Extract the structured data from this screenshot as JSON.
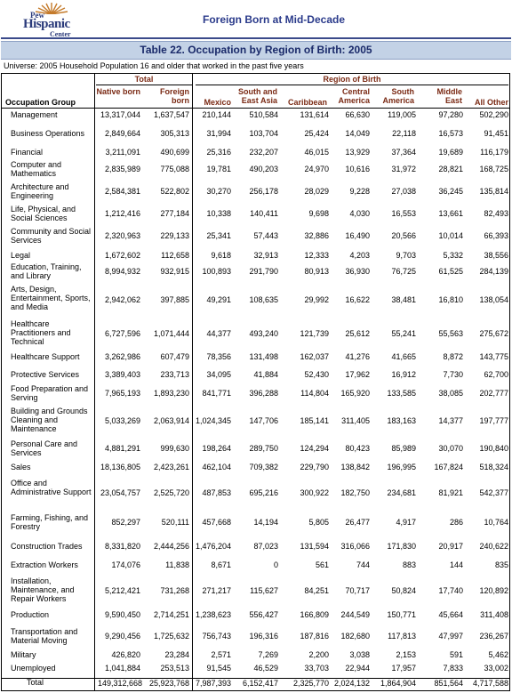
{
  "header": {
    "logo": {
      "line1": "Pew",
      "line2": "Hispanic",
      "line3": "Center"
    },
    "title": "Foreign Born at Mid-Decade"
  },
  "table": {
    "title": "Table 22. Occupation by Region of Birth:  2005",
    "universe": "Universe: 2005 Household Population 16 and older that worked in the past five years",
    "group_total": "Total",
    "group_region": "Region of Birth",
    "row_header": "Occupation Group",
    "columns": [
      "Native born",
      "Foreign born",
      "Mexico",
      "South and East Asia",
      "Caribbean",
      "Central America",
      "South America",
      "Middle East",
      "All Other"
    ],
    "rows": [
      {
        "label": "Management",
        "values": [
          "13,317,044",
          "1,637,547",
          "210,144",
          "510,584",
          "131,614",
          "66,630",
          "119,005",
          "97,280",
          "502,290"
        ]
      },
      {
        "label": "Business Operations",
        "values": [
          "2,849,664",
          "305,313",
          "31,994",
          "103,704",
          "25,424",
          "14,049",
          "22,118",
          "16,573",
          "91,451"
        ]
      },
      {
        "label": "Financial",
        "values": [
          "3,211,091",
          "490,699",
          "25,316",
          "232,207",
          "46,015",
          "13,929",
          "37,364",
          "19,689",
          "116,179"
        ]
      },
      {
        "label": "Computer and Mathematics",
        "values": [
          "2,835,989",
          "775,088",
          "19,781",
          "490,203",
          "24,970",
          "10,616",
          "31,972",
          "28,821",
          "168,725"
        ]
      },
      {
        "label": "Architecture and Engineering",
        "values": [
          "2,584,381",
          "522,802",
          "30,270",
          "256,178",
          "28,029",
          "9,228",
          "27,038",
          "36,245",
          "135,814"
        ]
      },
      {
        "label": "Life, Physical, and Social Sciences",
        "values": [
          "1,212,416",
          "277,184",
          "10,338",
          "140,411",
          "9,698",
          "4,030",
          "16,553",
          "13,661",
          "82,493"
        ]
      },
      {
        "label": "Community and Social Services",
        "values": [
          "2,320,963",
          "229,133",
          "25,341",
          "57,443",
          "32,886",
          "16,490",
          "20,566",
          "10,014",
          "66,393"
        ]
      },
      {
        "label": "Legal",
        "values": [
          "1,672,602",
          "112,658",
          "9,618",
          "32,913",
          "12,333",
          "4,203",
          "9,703",
          "5,332",
          "38,556"
        ]
      },
      {
        "label": "Education, Training, and Library",
        "values": [
          "8,994,932",
          "932,915",
          "100,893",
          "291,790",
          "80,913",
          "36,930",
          "76,725",
          "61,525",
          "284,139"
        ]
      },
      {
        "label": "Arts, Design, Entertainment, Sports, and Media",
        "values": [
          "2,942,062",
          "397,885",
          "49,291",
          "108,635",
          "29,992",
          "16,622",
          "38,481",
          "16,810",
          "138,054"
        ]
      },
      {
        "label": "Healthcare Practitioners and Technical",
        "values": [
          "6,727,596",
          "1,071,444",
          "44,377",
          "493,240",
          "121,739",
          "25,612",
          "55,241",
          "55,563",
          "275,672"
        ]
      },
      {
        "label": "Healthcare Support",
        "values": [
          "3,262,986",
          "607,479",
          "78,356",
          "131,498",
          "162,037",
          "41,276",
          "41,665",
          "8,872",
          "143,775"
        ]
      },
      {
        "label": "Protective Services",
        "values": [
          "3,389,403",
          "233,713",
          "34,095",
          "41,884",
          "52,430",
          "17,962",
          "16,912",
          "7,730",
          "62,700"
        ]
      },
      {
        "label": "Food Preparation and Serving",
        "values": [
          "7,965,193",
          "1,893,230",
          "841,771",
          "396,288",
          "114,804",
          "165,920",
          "133,585",
          "38,085",
          "202,777"
        ]
      },
      {
        "label": "Building and Grounds Cleaning and Maintenance",
        "values": [
          "5,033,269",
          "2,063,914",
          "1,024,345",
          "147,706",
          "185,141",
          "311,405",
          "183,163",
          "14,377",
          "197,777"
        ]
      },
      {
        "label": "Personal Care and Services",
        "values": [
          "4,881,291",
          "999,630",
          "198,264",
          "289,750",
          "124,294",
          "80,423",
          "85,989",
          "30,070",
          "190,840"
        ]
      },
      {
        "label": "Sales",
        "values": [
          "18,136,805",
          "2,423,261",
          "462,104",
          "709,382",
          "229,790",
          "138,842",
          "196,995",
          "167,824",
          "518,324"
        ]
      },
      {
        "label": "Office and Administrative Support",
        "values": [
          "23,054,757",
          "2,525,720",
          "487,853",
          "695,216",
          "300,922",
          "182,750",
          "234,681",
          "81,921",
          "542,377"
        ]
      },
      {
        "label": "Farming, Fishing, and Forestry",
        "values": [
          "852,297",
          "520,111",
          "457,668",
          "14,194",
          "5,805",
          "26,477",
          "4,917",
          "286",
          "10,764"
        ]
      },
      {
        "label": "Construction Trades",
        "values": [
          "8,331,820",
          "2,444,256",
          "1,476,204",
          "87,023",
          "131,594",
          "316,066",
          "171,830",
          "20,917",
          "240,622"
        ]
      },
      {
        "label": "Extraction Workers",
        "values": [
          "174,076",
          "11,838",
          "8,671",
          "0",
          "561",
          "744",
          "883",
          "144",
          "835"
        ]
      },
      {
        "label": "Installation, Maintenance, and Repair Workers",
        "values": [
          "5,212,421",
          "731,268",
          "271,217",
          "115,627",
          "84,251",
          "70,717",
          "50,824",
          "17,740",
          "120,892"
        ]
      },
      {
        "label": "Production",
        "values": [
          "9,590,450",
          "2,714,251",
          "1,238,623",
          "556,427",
          "166,809",
          "244,549",
          "150,771",
          "45,664",
          "311,408"
        ]
      },
      {
        "label": "Transportation and Material Moving",
        "values": [
          "9,290,456",
          "1,725,632",
          "756,743",
          "196,316",
          "187,816",
          "182,680",
          "117,813",
          "47,997",
          "236,267"
        ]
      },
      {
        "label": "Military",
        "values": [
          "426,820",
          "23,284",
          "2,571",
          "7,269",
          "2,200",
          "3,038",
          "2,153",
          "591",
          "5,462"
        ]
      },
      {
        "label": "Unemployed",
        "values": [
          "1,041,884",
          "253,513",
          "91,545",
          "46,529",
          "33,703",
          "22,944",
          "17,957",
          "7,833",
          "33,002"
        ]
      },
      {
        "label": "Total",
        "values": [
          "149,312,668",
          "25,923,768",
          "7,987,393",
          "6,152,417",
          "2,325,770",
          "2,024,132",
          "1,864,904",
          "851,564",
          "4,717,588"
        ]
      }
    ]
  }
}
